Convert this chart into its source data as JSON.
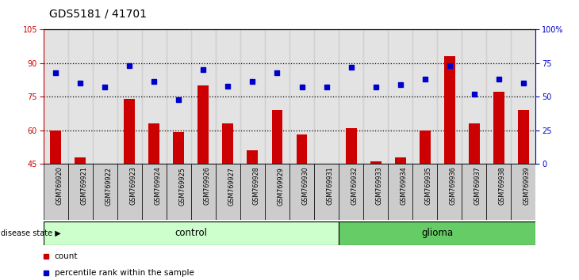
{
  "title": "GDS5181 / 41701",
  "samples": [
    "GSM769920",
    "GSM769921",
    "GSM769922",
    "GSM769923",
    "GSM769924",
    "GSM769925",
    "GSM769926",
    "GSM769927",
    "GSM769928",
    "GSM769929",
    "GSM769930",
    "GSM769931",
    "GSM769932",
    "GSM769933",
    "GSM769934",
    "GSM769935",
    "GSM769936",
    "GSM769937",
    "GSM769938",
    "GSM769939"
  ],
  "bar_values": [
    60,
    48,
    45,
    74,
    63,
    59,
    80,
    63,
    51,
    69,
    58,
    45,
    61,
    46,
    48,
    60,
    93,
    63,
    77,
    69
  ],
  "blue_values": [
    68,
    60,
    57,
    73,
    61,
    48,
    70,
    58,
    61,
    68,
    57,
    57,
    72,
    57,
    59,
    63,
    73,
    52,
    63,
    60
  ],
  "ylim_left": [
    45,
    105
  ],
  "ylim_right": [
    0,
    100
  ],
  "yticks_left": [
    45,
    60,
    75,
    90,
    105
  ],
  "yticks_right": [
    0,
    25,
    50,
    75,
    100
  ],
  "ytick_labels_right": [
    "0",
    "25",
    "50",
    "75",
    "100%"
  ],
  "bar_color": "#cc0000",
  "blue_color": "#0000cc",
  "control_count": 12,
  "glioma_count": 8,
  "control_label": "control",
  "glioma_label": "glioma",
  "disease_state_label": "disease state",
  "legend_count_label": "count",
  "legend_pct_label": "percentile rank within the sample",
  "control_bg": "#ccffcc",
  "glioma_bg": "#66cc66",
  "col_bg": "#cccccc"
}
